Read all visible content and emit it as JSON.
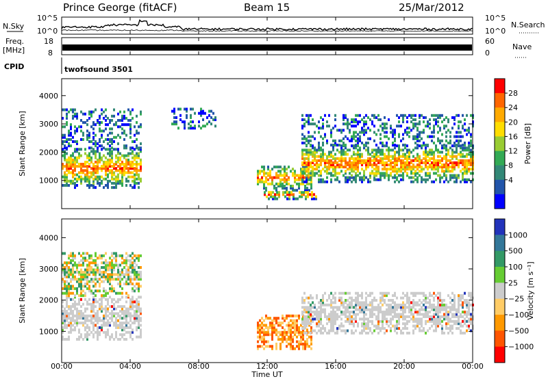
{
  "header": {
    "station": "Prince George (fitACF)",
    "beam": "Beam 15",
    "date": "25/Mar/2012"
  },
  "noise_panel": {
    "left_label": "N.Sky",
    "right_label": "N.Search",
    "left_ticks": [
      "10^5",
      "10^0"
    ],
    "right_ticks": [
      "10^5",
      "10^0"
    ]
  },
  "freq_panel": {
    "left_label_top": "Freq.",
    "left_label_bottom": "[MHz]",
    "left_ticks": [
      "18",
      "8"
    ],
    "right_label": "Nave",
    "right_ticks": [
      "60",
      "0"
    ]
  },
  "cpid_panel": {
    "label": "CPID",
    "value": "twofsound 3501"
  },
  "time_axis": {
    "ticks": [
      "00:00",
      "04:00",
      "08:00",
      "12:00",
      "16:00",
      "20:00",
      "00:00"
    ],
    "label": "Time UT"
  },
  "chart_data": [
    {
      "type": "heatmap",
      "title": "",
      "quantity": "Power",
      "ylabel": "Slant Range [km]",
      "xlabel": "Time UT",
      "ylim": [
        0,
        4600
      ],
      "xlim_hours": [
        0,
        24
      ],
      "yticks": [
        "1000",
        "2000",
        "3000",
        "4000"
      ],
      "colorbar": {
        "label": "Power [dB]",
        "ticks": [
          "28",
          "24",
          "20",
          "16",
          "12",
          "8",
          "4"
        ],
        "colors": [
          "#ff0000",
          "#ff6600",
          "#ffaa00",
          "#ffdd00",
          "#99cc33",
          "#33aa55",
          "#338877",
          "#2255aa",
          "#0000ff"
        ]
      },
      "echo_regions": [
        {
          "t_start": 0.0,
          "t_end": 4.6,
          "r_min": 700,
          "r_max": 2100,
          "intensity": "high"
        },
        {
          "t_start": 0.0,
          "t_end": 4.6,
          "r_min": 2100,
          "r_max": 3500,
          "intensity": "low"
        },
        {
          "t_start": 6.4,
          "t_end": 9.0,
          "r_min": 2800,
          "r_max": 3500,
          "intensity": "low"
        },
        {
          "t_start": 11.4,
          "t_end": 14.6,
          "r_min": 600,
          "r_max": 1500,
          "intensity": "high"
        },
        {
          "t_start": 11.8,
          "t_end": 14.8,
          "r_min": 300,
          "r_max": 600,
          "intensity": "high"
        },
        {
          "t_start": 14.0,
          "t_end": 24.0,
          "r_min": 900,
          "r_max": 2200,
          "intensity": "high"
        },
        {
          "t_start": 14.0,
          "t_end": 24.0,
          "r_min": 2200,
          "r_max": 3300,
          "intensity": "low"
        }
      ]
    },
    {
      "type": "heatmap",
      "title": "",
      "quantity": "Velocity",
      "ylabel": "Slant Range [km]",
      "xlabel": "Time UT",
      "ylim": [
        0,
        4600
      ],
      "xlim_hours": [
        0,
        24
      ],
      "yticks": [
        "1000",
        "2000",
        "3000",
        "4000"
      ],
      "colorbar": {
        "label": "Velocity [m s⁻¹]",
        "ticks": [
          "1000",
          "500",
          "100",
          "25",
          "−25",
          "−100",
          "−500",
          "−1000"
        ],
        "colors": [
          "#2233bb",
          "#337799",
          "#339966",
          "#66cc33",
          "#cccccc",
          "#ffcc66",
          "#ff9900",
          "#ff5500",
          "#ff0000"
        ]
      },
      "echo_regions": [
        {
          "t_start": 0.0,
          "t_end": 4.6,
          "r_min": 700,
          "r_max": 2100,
          "intensity": "ground-scatter"
        },
        {
          "t_start": 0.0,
          "t_end": 4.6,
          "r_min": 2100,
          "r_max": 3500,
          "intensity": "mixed"
        },
        {
          "t_start": 11.4,
          "t_end": 14.6,
          "r_min": 400,
          "r_max": 1500,
          "intensity": "negative"
        },
        {
          "t_start": 14.0,
          "t_end": 24.0,
          "r_min": 900,
          "r_max": 2200,
          "intensity": "ground-scatter"
        }
      ]
    }
  ]
}
